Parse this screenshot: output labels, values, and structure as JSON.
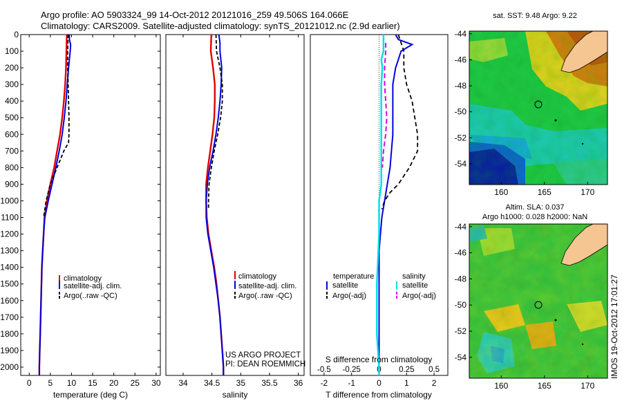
{
  "header": {
    "line1": "Argo profile: AO 5903324_99 14-Oct-2012 20121016_259 49.506S 164.066E",
    "line2": "Climatology: CARS2009. Satellite-adjusted climatology: synTS_20121012.nc (2.9d earlier)"
  },
  "credit": {
    "line1": "US ARGO PROJECT",
    "line2": "PI: DEAN ROEMMICH"
  },
  "footer_stamp": "IMOS 19-Oct-2012 17:01:27",
  "map_top_title": "sat. SST: 9.48 Argo: 9.22",
  "map_bottom_title1": "Altim. SLA: 0.037",
  "map_bottom_title2": "Argo h1000: 0.028 h2000: NaN",
  "colors": {
    "climatology": "#e00000",
    "satellite": "#0000dd",
    "argo": "#000000",
    "temp_diff_sat": "#0000dd",
    "sal_diff_sat": "#00e0e0",
    "sal_diff_argo": "#dd00dd"
  },
  "chart_data": [
    {
      "type": "line",
      "xlabel": "temperature (deg C)",
      "ylabel": "",
      "xlim": [
        -2,
        31
      ],
      "ylim": [
        2050,
        0
      ],
      "xticks": [
        "0",
        "5",
        "10",
        "15",
        "20",
        "25",
        "30"
      ],
      "yticks": [
        "0",
        "100",
        "200",
        "300",
        "400",
        "500",
        "600",
        "700",
        "800",
        "900",
        "1000",
        "1100",
        "1200",
        "1300",
        "1400",
        "1500",
        "1600",
        "1700",
        "1800",
        "1900",
        "2000"
      ],
      "legend": [
        "climatology",
        "satellite-adj. clim.",
        "Argo(..raw -QC)"
      ],
      "series": [
        {
          "name": "climatology",
          "depth": [
            0,
            100,
            200,
            300,
            400,
            500,
            600,
            700,
            800,
            900,
            1000,
            1100,
            1200,
            1300,
            1400,
            1500,
            1600,
            1700,
            1800,
            1900,
            2000,
            2050
          ],
          "values": [
            8.9,
            8.8,
            8.7,
            8.5,
            8.2,
            7.8,
            7.3,
            6.6,
            5.9,
            5.0,
            4.2,
            3.6,
            3.4,
            3.2,
            3.0,
            2.9,
            2.8,
            2.7,
            2.6,
            2.5,
            2.4,
            2.4
          ]
        },
        {
          "name": "satellite-adj. clim.",
          "depth": [
            0,
            30,
            60,
            100,
            200,
            300,
            400,
            500,
            600,
            700,
            800,
            900,
            1000,
            1100,
            1200,
            1300,
            1400,
            1500,
            1600,
            1700,
            1800,
            1900,
            2000,
            2050
          ],
          "values": [
            9.5,
            9.5,
            9.8,
            9.7,
            9.3,
            9.0,
            8.7,
            8.3,
            7.8,
            7.1,
            6.3,
            5.4,
            4.5,
            3.7,
            3.4,
            3.2,
            3.0,
            2.9,
            2.8,
            2.7,
            2.6,
            2.5,
            2.4,
            2.4
          ]
        },
        {
          "name": "Argo(..raw -QC)",
          "depth": [
            0,
            100,
            200,
            300,
            400,
            500,
            600,
            650,
            700,
            800,
            900,
            1000,
            1100
          ],
          "values": [
            9.2,
            9.1,
            9.1,
            9.2,
            9.3,
            9.4,
            9.4,
            9.3,
            8.2,
            6.6,
            5.0,
            4.0,
            3.4
          ]
        }
      ]
    },
    {
      "type": "line",
      "xlabel": "salinity",
      "xlim": [
        33.7,
        36.1
      ],
      "ylim": [
        2050,
        0
      ],
      "xticks": [
        "34",
        "34.5",
        "35",
        "35.5",
        "36"
      ],
      "legend": [
        "climatology",
        "satellite-adj. clim.",
        "Argo(..raw -QC)"
      ],
      "series": [
        {
          "name": "climatology",
          "depth": [
            0,
            100,
            200,
            300,
            400,
            500,
            600,
            700,
            800,
            900,
            1000,
            1100,
            1200,
            1300,
            1400,
            1500,
            1600,
            1700,
            1800,
            1900,
            2000,
            2050
          ],
          "values": [
            34.49,
            34.48,
            34.52,
            34.55,
            34.55,
            34.54,
            34.51,
            34.47,
            34.43,
            34.4,
            34.4,
            34.41,
            34.44,
            34.49,
            34.54,
            34.58,
            34.61,
            34.64,
            34.66,
            34.68,
            34.7,
            34.7
          ]
        },
        {
          "name": "satellite-adj. clim.",
          "depth": [
            0,
            50,
            100,
            200,
            300,
            400,
            500,
            600,
            700,
            800,
            900,
            1000,
            1100,
            1200,
            1300,
            1400,
            1500,
            1600,
            1700,
            1800,
            1900,
            2000,
            2050
          ],
          "values": [
            34.62,
            34.64,
            34.64,
            34.67,
            34.66,
            34.64,
            34.61,
            34.57,
            34.52,
            34.46,
            34.42,
            34.4,
            34.4,
            34.43,
            34.48,
            34.53,
            34.57,
            34.61,
            34.64,
            34.66,
            34.68,
            34.7,
            34.7
          ]
        },
        {
          "name": "Argo(..raw -QC)",
          "depth": [
            0,
            100,
            200,
            300,
            400,
            500,
            600,
            700,
            800,
            900,
            1000,
            1050
          ],
          "values": [
            34.57,
            34.58,
            34.64,
            34.68,
            34.68,
            34.65,
            34.6,
            34.54,
            34.49,
            34.45,
            34.44,
            34.44
          ]
        }
      ]
    },
    {
      "type": "line",
      "xlabel": "T difference from climatology",
      "top_label": "S difference from climatology",
      "xlim": [
        -2.5,
        2.5
      ],
      "ylim": [
        2050,
        0
      ],
      "xticks": [
        "-2",
        "-1",
        "0",
        "1",
        "2"
      ],
      "top_ticks": [
        "-0.5",
        "-0.25",
        "0",
        "0.25",
        "0.5"
      ],
      "legend_headers": [
        "temperature",
        "salinity"
      ],
      "legend": [
        "satellite",
        "Argo(-adj)",
        "satellite",
        "Argo(-adj)"
      ],
      "series": [
        {
          "name": "satellite",
          "depth": [
            0,
            30,
            60,
            100,
            150,
            200,
            300,
            400,
            500,
            600,
            700,
            800,
            900,
            1000,
            1100,
            1200,
            1300,
            1500,
            1800,
            2000,
            2050
          ],
          "values": [
            0.6,
            0.7,
            1.2,
            0.8,
            0.7,
            0.6,
            0.5,
            0.5,
            0.5,
            0.5,
            0.45,
            0.4,
            0.3,
            0.2,
            0.1,
            0.05,
            0.0,
            0.0,
            0.0,
            0.0,
            0.0
          ]
        },
        {
          "name": "Argo(-adj)",
          "depth": [
            0,
            100,
            200,
            300,
            400,
            500,
            600,
            700,
            800,
            900,
            950,
            1000,
            1050
          ],
          "values": [
            0.7,
            0.9,
            0.9,
            1.0,
            1.2,
            1.3,
            1.4,
            1.4,
            1.1,
            0.7,
            0.4,
            0.2,
            0.1
          ]
        },
        {
          "name": "satellite",
          "depth": [
            0,
            100,
            150,
            200,
            300,
            400,
            500,
            600,
            700,
            800,
            900,
            1000,
            1100,
            1200,
            1500,
            1800,
            2000,
            2050
          ],
          "values": [
            0.04,
            0.04,
            0.02,
            0.03,
            0.02,
            0.02,
            0.02,
            0.02,
            0.02,
            0.02,
            0.02,
            0.0,
            0.0,
            0.0,
            -0.02,
            -0.02,
            0.0,
            0.0
          ]
        },
        {
          "name": "Argo(-adj)",
          "depth": [
            50,
            100,
            200,
            300,
            400,
            500,
            600,
            700,
            800
          ],
          "values": [
            0.06,
            0.06,
            0.05,
            0.05,
            0.06,
            0.07,
            0.06,
            0.04,
            0.03
          ]
        }
      ]
    }
  ],
  "maps": {
    "xticks": [
      "160",
      "165",
      "170"
    ],
    "yticks": [
      "-44",
      "-46",
      "-48",
      "-50",
      "-52",
      "-54"
    ]
  }
}
